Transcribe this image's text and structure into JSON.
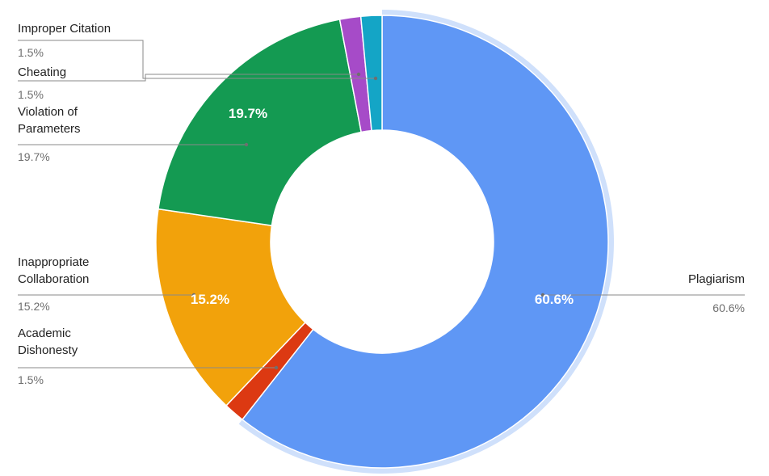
{
  "chart_data": {
    "type": "pie",
    "donut": true,
    "legend": "none",
    "labels_position": "outside-with-leader-lines",
    "series": [
      {
        "name": "Plagiarism",
        "value": 60.6,
        "label": "60.6%",
        "color": "#5f97f5"
      },
      {
        "name": "Academic Dishonesty",
        "value": 1.5,
        "label": "1.5%",
        "color": "#dc3912"
      },
      {
        "name": "Inappropriate Collaboration",
        "value": 15.2,
        "label": "15.2%",
        "color": "#f2a20b"
      },
      {
        "name": "Violation of Parameters",
        "value": 19.7,
        "label": "19.7%",
        "color": "#149a52"
      },
      {
        "name": "Cheating",
        "value": 1.5,
        "label": "1.5%",
        "color": "#a64bc8"
      },
      {
        "name": "Improper Citation",
        "value": 1.5,
        "label": "1.5%",
        "color": "#14a5c6"
      }
    ],
    "slice_labels": [
      "60.6%",
      "15.2%",
      "19.7%"
    ],
    "highlight_ring_color": "#cfe0fb"
  }
}
